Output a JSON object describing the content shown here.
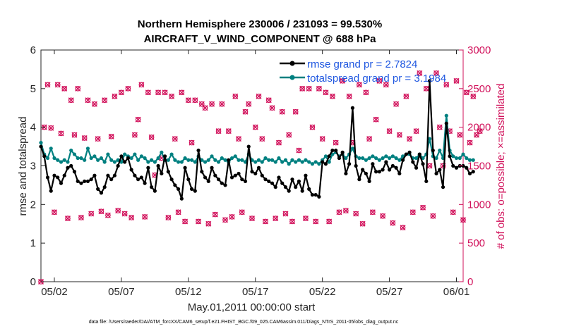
{
  "chart_data": {
    "type": "line",
    "title_line1": "Northern Hemisphere 230006 / 231093 = 99.530%",
    "title_line2": "AIRCRAFT_V_WIND_COMPONENT @ 688 hPa",
    "xlabel": "May.01,2011 00:00:00 start",
    "ylabel_left": "rmse and totalspread",
    "ylabel_right": "# of obs: o=possible; ×=assimilated",
    "xlim": [
      0,
      31.5
    ],
    "ylim_left": [
      0,
      6
    ],
    "ylim_right": [
      0,
      3000
    ],
    "x_ticks": [
      {
        "x": 1,
        "label": "05/02"
      },
      {
        "x": 6,
        "label": "05/07"
      },
      {
        "x": 11,
        "label": "05/12"
      },
      {
        "x": 16,
        "label": "05/17"
      },
      {
        "x": 21,
        "label": "05/22"
      },
      {
        "x": 26,
        "label": "05/27"
      },
      {
        "x": 31,
        "label": "06/01"
      }
    ],
    "y_ticks_left": [
      {
        "v": 0,
        "label": "0"
      },
      {
        "v": 1,
        "label": "1"
      },
      {
        "v": 2,
        "label": "2"
      },
      {
        "v": 3,
        "label": "3"
      },
      {
        "v": 4,
        "label": "4"
      },
      {
        "v": 5,
        "label": "5"
      },
      {
        "v": 6,
        "label": "6"
      }
    ],
    "y_ticks_right": [
      {
        "v": 0,
        "label": "0"
      },
      {
        "v": 500,
        "label": "500"
      },
      {
        "v": 1000,
        "label": "1000"
      },
      {
        "v": 1500,
        "label": "1500"
      },
      {
        "v": 2000,
        "label": "2000"
      },
      {
        "v": 2500,
        "label": "2500"
      },
      {
        "v": 3000,
        "label": "3000"
      }
    ],
    "series": [
      {
        "name": "rmse",
        "legend": "rmse grand pr = 2.7824",
        "color": "#000000",
        "x_start": 0.0,
        "x_step": 0.25,
        "values": [
          3.5,
          3.25,
          2.7,
          2.35,
          2.75,
          2.7,
          2.55,
          2.75,
          2.95,
          3.0,
          2.85,
          2.6,
          2.55,
          2.6,
          2.6,
          2.65,
          2.75,
          2.4,
          2.3,
          2.45,
          2.75,
          2.65,
          2.75,
          3.0,
          3.25,
          3.1,
          3.2,
          2.9,
          2.75,
          2.65,
          2.7,
          2.55,
          2.95,
          2.45,
          2.35,
          3.0,
          2.8,
          3.25,
          2.85,
          2.65,
          2.5,
          2.4,
          2.15,
          2.95,
          2.65,
          2.4,
          2.35,
          3.4,
          2.85,
          2.7,
          2.6,
          2.95,
          2.75,
          2.65,
          2.55,
          2.5,
          3.15,
          2.7,
          2.75,
          2.8,
          2.65,
          2.6,
          3.5,
          2.85,
          2.8,
          2.95,
          2.75,
          2.65,
          2.6,
          2.55,
          2.45,
          2.7,
          2.55,
          2.45,
          2.35,
          2.65,
          2.45,
          2.6,
          2.35,
          2.75,
          2.4,
          2.25,
          2.25,
          2.2,
          3.1,
          3.05,
          3.25,
          3.4,
          3.4,
          3.2,
          3.35,
          2.8,
          3.05,
          4.5,
          3.0,
          2.65,
          2.9,
          2.8,
          2.6,
          3.05,
          2.85,
          2.85,
          2.9,
          3.1,
          2.9,
          3.0,
          2.95,
          2.8,
          3.15,
          3.3,
          3.35,
          3.1,
          2.95,
          3.3,
          3.05,
          2.6,
          5.2,
          3.4,
          2.8,
          2.9,
          2.45,
          4.1,
          3.25,
          3.0,
          2.95,
          3.0,
          3.0,
          2.95,
          2.8,
          2.85
        ]
      },
      {
        "name": "totalspread",
        "legend": "totalspread grand pr = 3.1984",
        "color": "#008080",
        "x_start": 0.0,
        "x_step": 0.25,
        "values": [
          3.6,
          3.3,
          3.2,
          3.45,
          3.2,
          3.15,
          3.1,
          3.15,
          3.1,
          3.4,
          3.3,
          3.2,
          3.2,
          3.15,
          3.45,
          3.2,
          3.25,
          3.15,
          3.2,
          3.1,
          3.3,
          3.15,
          3.1,
          3.15,
          3.1,
          3.3,
          3.25,
          3.2,
          3.3,
          3.15,
          3.25,
          3.2,
          3.1,
          3.15,
          3.1,
          3.2,
          3.35,
          3.15,
          3.15,
          3.3,
          3.15,
          3.1,
          3.1,
          3.2,
          3.15,
          3.15,
          3.1,
          3.25,
          3.15,
          3.1,
          3.15,
          3.25,
          3.15,
          3.1,
          3.2,
          3.15,
          3.1,
          3.2,
          3.25,
          3.15,
          3.15,
          3.1,
          3.3,
          3.15,
          3.1,
          3.15,
          3.1,
          3.2,
          3.15,
          3.15,
          3.1,
          3.2,
          3.1,
          3.15,
          3.05,
          3.15,
          3.1,
          3.15,
          3.1,
          3.15,
          3.1,
          3.05,
          3.1,
          3.05,
          3.15,
          3.25,
          3.1,
          3.3,
          3.35,
          3.25,
          3.3,
          3.2,
          3.3,
          3.45,
          3.25,
          3.2,
          3.2,
          3.15,
          3.2,
          3.25,
          3.2,
          3.15,
          3.2,
          3.25,
          3.2,
          3.25,
          3.2,
          3.15,
          3.25,
          3.3,
          3.3,
          3.2,
          3.2,
          3.3,
          3.2,
          3.3,
          3.7,
          3.25,
          3.2,
          3.4,
          3.2,
          4.3,
          3.4,
          3.25,
          3.2,
          3.2,
          3.3,
          3.2,
          3.15,
          3.15
        ]
      },
      {
        "name": "obs",
        "legend": "",
        "color": "#d1105a",
        "x_start": 0.0,
        "x_step": 0.25,
        "values": [
          0,
          2000,
          2550,
          1990,
          900,
          2550,
          1920,
          2500,
          820,
          2350,
          1900,
          2500,
          830,
          1860,
          2350,
          880,
          2300,
          1850,
          910,
          2350,
          860,
          1880,
          2400,
          920,
          2450,
          880,
          2500,
          830,
          1900,
          2100,
          2550,
          840,
          2450,
          1870,
          1380,
          2450,
          1600,
          2450,
          830,
          2400,
          1850,
          900,
          2450,
          780,
          2350,
          1800,
          2350,
          780,
          2300,
          2250,
          750,
          2300,
          870,
          1950,
          2300,
          800,
          1950,
          840,
          2400,
          1850,
          900,
          2200,
          2300,
          820,
          2000,
          2400,
          1850,
          780,
          2350,
          2250,
          820,
          1800,
          2200,
          880,
          1900,
          780,
          2200,
          1700,
          2500,
          820,
          2500,
          2000,
          780,
          2500,
          1850,
          2450,
          780,
          2400,
          1800,
          900,
          2600,
          920,
          2400,
          1800,
          880,
          2550,
          750,
          2450,
          1850,
          900,
          2100,
          2600,
          850,
          2550,
          1950,
          760,
          2300,
          1900,
          700,
          2400,
          1850,
          900,
          1950,
          2700,
          960,
          2500,
          1500,
          850,
          2700,
          2000,
          1500,
          2550,
          1950,
          900,
          2600,
          1900,
          800,
          2450,
          1800,
          2400,
          1900,
          1950
        ]
      }
    ]
  },
  "footer": {
    "datafile": "data file: /Users/raeder/DAI/ATM_forcXX/CAM6_setup/f.e21.FHIST_BGC.f09_025.CAM6assim.011/Diags_NTrS_2011-05/obs_diag_output.nc"
  }
}
